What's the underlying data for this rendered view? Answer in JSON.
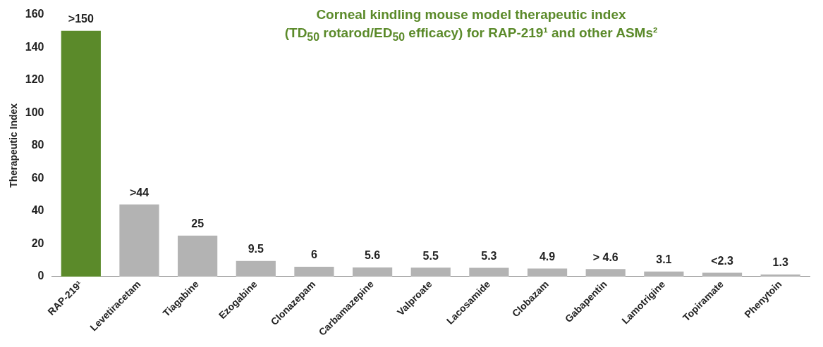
{
  "chart_data": {
    "type": "bar",
    "title": "Corneal kindling mouse model therapeutic index\n(TD$_{50}$ rotarod/ED$_{50}$ efficacy) for RAP-219¹ and other ASMs²",
    "ylabel": "Therapeutic Index",
    "categories": [
      "RAP-219¹",
      "Levetiracetam",
      "Tiagabine",
      "Ezogabine",
      "Clonazepam",
      "Carbamazepine",
      "Valproate",
      "Lacosamide",
      "Clobazam",
      "Gabapentin",
      "Lamotrigine",
      "Topiramate",
      "Phenytoin"
    ],
    "values": [
      150,
      44,
      25,
      9.5,
      6,
      5.6,
      5.5,
      5.3,
      4.9,
      4.6,
      3.1,
      2.3,
      1.3
    ],
    "colors": [
      "#5b8a2a",
      "#b3b3b3",
      "#b3b3b3",
      "#b3b3b3",
      "#b3b3b3",
      "#b3b3b3",
      "#b3b3b3",
      "#b3b3b3",
      "#b3b3b3",
      "#b3b3b3",
      "#b3b3b3",
      "#b3b3b3",
      "#b3b3b3"
    ],
    "value_labels": [
      ">150",
      ">44",
      "25",
      "9.5",
      "6",
      "5.6",
      "5.5",
      "5.3",
      "4.9",
      "> 4.6",
      "3.1",
      "<2.3",
      "1.3"
    ],
    "ylim": [
      0,
      160
    ],
    "yticks": [
      0,
      20,
      40,
      60,
      80,
      100,
      120,
      140,
      160
    ],
    "grid": false,
    "legend": false
  }
}
